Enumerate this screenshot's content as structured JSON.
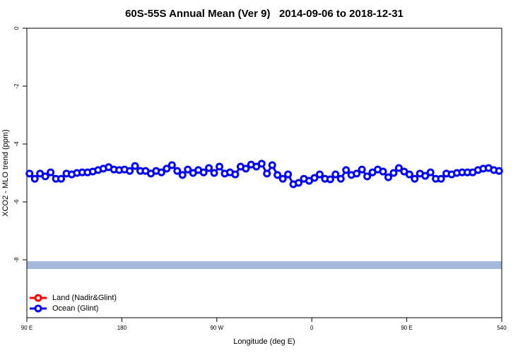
{
  "chart_data": {
    "type": "line",
    "title": "60S-55S Annual Mean (Ver 9)   2014-09-06 to 2018-12-31",
    "xlabel": "Longitude (deg E)",
    "ylabel": "XCO2 - MLO trend (ppm)",
    "xlim": [
      90,
      540
    ],
    "xticks": [
      {
        "value": 90,
        "label": "90 E"
      },
      180,
      {
        "value": 270,
        "label": "90 W"
      },
      {
        "value": 360,
        "label": "0"
      },
      {
        "value": 450,
        "label": "90 E"
      },
      540
    ],
    "ylim": [
      -10,
      0
    ],
    "yticks": [
      0,
      -2,
      -4,
      -6,
      -8
    ],
    "legend": "bottom-left",
    "x": [
      92.5,
      97.5,
      102.5,
      107.5,
      112.5,
      117.5,
      122.5,
      127.5,
      132.5,
      137.5,
      142.5,
      147.5,
      152.5,
      157.5,
      162.5,
      167.5,
      172.5,
      177.5,
      182.5,
      187.5,
      192.5,
      197.5,
      202.5,
      207.5,
      212.5,
      217.5,
      222.5,
      227.5,
      232.5,
      237.5,
      242.5,
      247.5,
      252.5,
      257.5,
      262.5,
      267.5,
      272.5,
      277.5,
      282.5,
      287.5,
      292.5,
      297.5,
      302.5,
      307.5,
      312.5,
      317.5,
      322.5,
      327.5,
      332.5,
      337.5,
      342.5,
      347.5,
      352.5,
      357.5,
      362.5,
      367.5,
      372.5,
      377.5,
      382.5,
      387.5,
      392.5,
      397.5,
      402.5,
      407.5,
      412.5,
      417.5,
      422.5,
      427.5,
      432.5,
      437.5,
      442.5,
      447.5,
      452.5,
      457.5,
      462.5,
      467.5,
      472.5,
      477.5,
      482.5,
      487.5,
      492.5,
      497.5,
      502.5,
      507.5,
      512.5,
      517.5,
      522.5,
      527.5,
      532.5,
      537.5
    ],
    "series": [
      {
        "name": "Land (Nadir&Glint)",
        "color": "#ff0000",
        "values": [
          null,
          null,
          null,
          null,
          null,
          null,
          null,
          null,
          null,
          null,
          null,
          null,
          null,
          null,
          null,
          null,
          null,
          null,
          null,
          null,
          null,
          null,
          null,
          null,
          null,
          null,
          null,
          null,
          null,
          null,
          null,
          null,
          null,
          null,
          null,
          null,
          null,
          null,
          null,
          null,
          null,
          null,
          null,
          null,
          null,
          null,
          null,
          null,
          null,
          null,
          null,
          null,
          null,
          null,
          null,
          null,
          null,
          null,
          null,
          null,
          null,
          null,
          null,
          null,
          null,
          null,
          null,
          null,
          null,
          null,
          null,
          null,
          null,
          null,
          null,
          null,
          null,
          null,
          null,
          null,
          null,
          null,
          null,
          null,
          null,
          null,
          null,
          null,
          null,
          null
        ]
      },
      {
        "name": "Ocean (Glint)",
        "color": "#0000ff",
        "values": [
          -5.02,
          -5.2,
          -5.02,
          -5.12,
          -4.98,
          -5.2,
          -5.2,
          -5.02,
          -5.05,
          -5.0,
          -4.98,
          -4.98,
          -4.95,
          -4.9,
          -4.85,
          -4.8,
          -4.88,
          -4.9,
          -4.88,
          -4.93,
          -4.76,
          -4.93,
          -4.93,
          -5.02,
          -4.93,
          -4.98,
          -4.85,
          -4.73,
          -4.93,
          -5.07,
          -4.88,
          -5.0,
          -4.9,
          -4.98,
          -4.83,
          -5.0,
          -4.78,
          -5.02,
          -4.98,
          -5.05,
          -4.78,
          -4.85,
          -4.71,
          -4.78,
          -4.68,
          -5.02,
          -4.73,
          -5.07,
          -5.2,
          -5.05,
          -5.39,
          -5.34,
          -5.2,
          -5.27,
          -5.17,
          -5.05,
          -5.2,
          -5.22,
          -5.05,
          -5.2,
          -4.9,
          -5.07,
          -5.02,
          -4.88,
          -5.12,
          -4.98,
          -4.88,
          -4.95,
          -5.15,
          -5.0,
          -4.83,
          -4.95,
          -5.05,
          -5.2,
          -5.02,
          -5.1,
          -4.98,
          -5.2,
          -5.2,
          -5.02,
          -5.05,
          -5.0,
          -4.98,
          -4.98,
          -4.98,
          -4.9,
          -4.85,
          -4.83,
          -4.9,
          -4.93
        ]
      }
    ]
  }
}
